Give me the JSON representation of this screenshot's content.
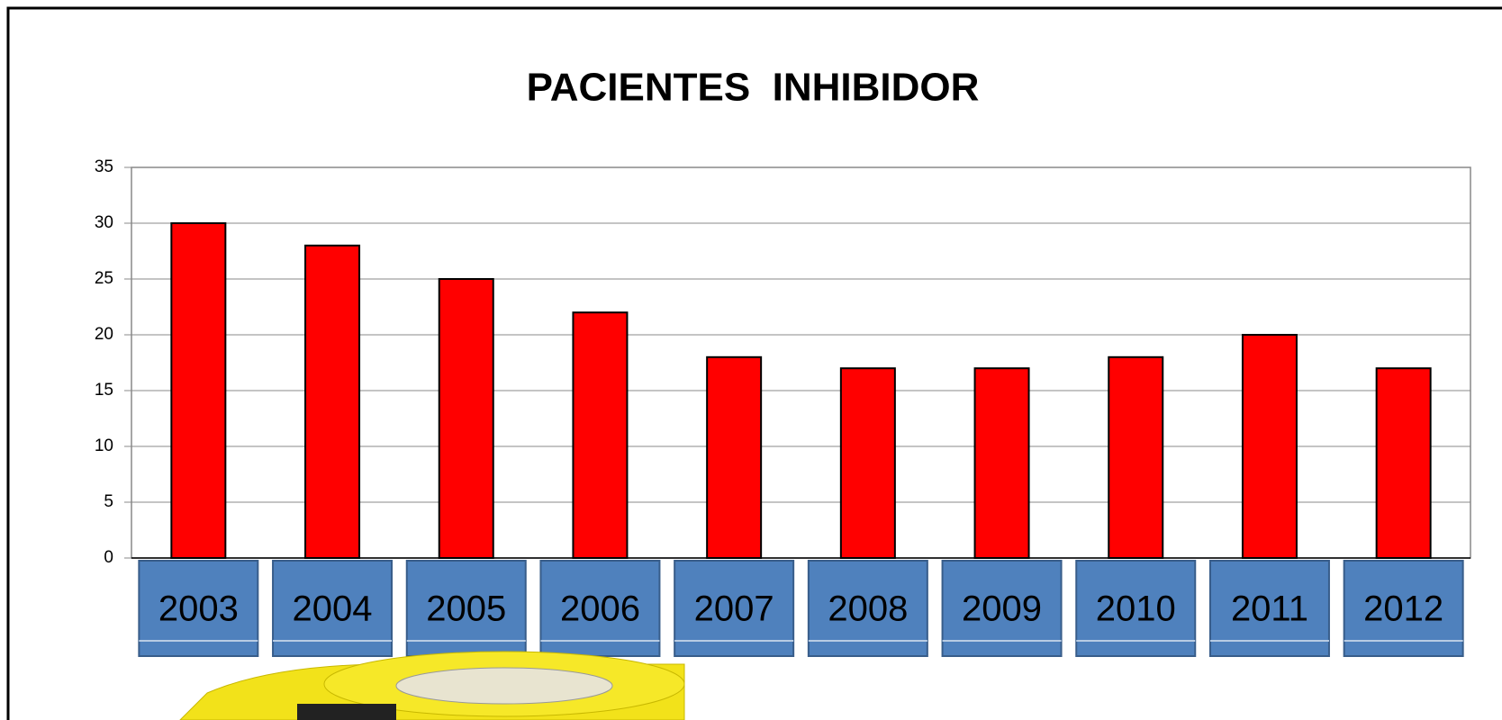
{
  "chart_data": {
    "type": "bar",
    "title": "PACIENTES  INHIBIDOR",
    "categories": [
      "2003",
      "2004",
      "2005",
      "2006",
      "2007",
      "2008",
      "2009",
      "2010",
      "2011",
      "2012"
    ],
    "values": [
      30,
      28,
      25,
      22,
      18,
      17,
      17,
      18,
      20,
      17
    ],
    "color": "#ff0000",
    "category_box_color": "#4f81bd",
    "ylim": [
      0,
      35
    ],
    "yticks": [
      0,
      5,
      10,
      15,
      20,
      25,
      30,
      35
    ],
    "grid": true
  }
}
